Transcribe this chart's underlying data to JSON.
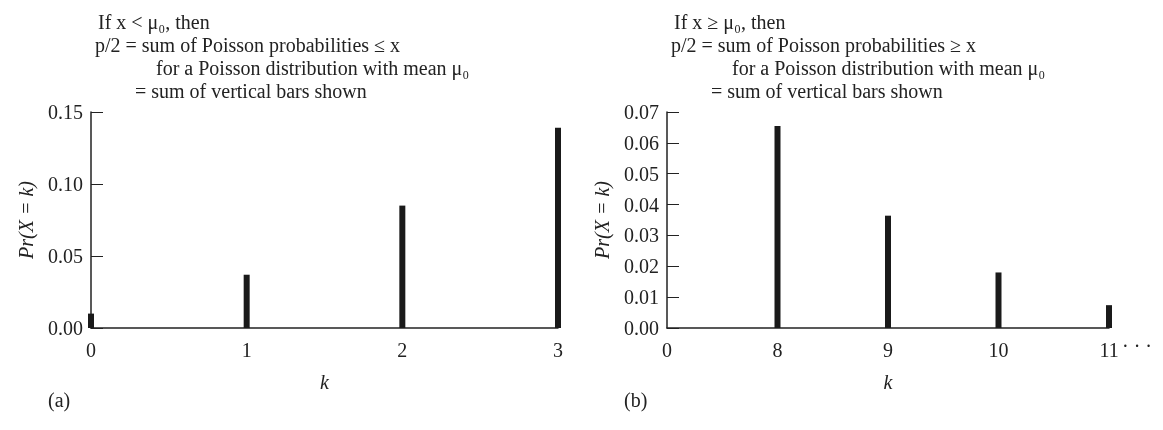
{
  "chart_data": [
    {
      "type": "bar",
      "xlabel": "k",
      "ylabel": "Pr(X = k)",
      "categories": [
        "0",
        "1",
        "2",
        "3"
      ],
      "values": [
        0.01,
        0.037,
        0.085,
        0.139
      ],
      "color": "#1a1a1a",
      "ylim": [
        0,
        0.15
      ],
      "yticks": [
        {
          "value": 0,
          "label": "0.00"
        },
        {
          "value": 0.05,
          "label": "0.05"
        },
        {
          "value": 0.1,
          "label": "0.10"
        },
        {
          "value": 0.15,
          "label": "0.15"
        }
      ],
      "grid": false,
      "annotations": [
        "If x < μ₀, then",
        "p/2 = sum of Poisson probabilities ≤ x",
        "for a Poisson distribution with mean μ₀",
        "= sum of vertical bars shown",
        "(a)"
      ]
    },
    {
      "type": "bar",
      "xlabel": "k",
      "ylabel": "Pr(X = k)",
      "categories": [
        "0",
        "8",
        "9",
        "10",
        "11"
      ],
      "values": [
        null,
        0.0655,
        0.0364,
        0.018,
        0.0074
      ],
      "color": "#1a1a1a",
      "ylim": [
        0,
        0.07
      ],
      "yticks": [
        {
          "value": 0,
          "label": "0.00"
        },
        {
          "value": 0.01,
          "label": "0.01"
        },
        {
          "value": 0.02,
          "label": "0.02"
        },
        {
          "value": 0.03,
          "label": "0.03"
        },
        {
          "value": 0.04,
          "label": "0.04"
        },
        {
          "value": 0.05,
          "label": "0.05"
        },
        {
          "value": 0.06,
          "label": "0.06"
        },
        {
          "value": 0.07,
          "label": "0.07"
        }
      ],
      "grid": false,
      "annotations": [
        "If x ≥ μ₀, then",
        "p/2 = sum of Poisson probabilities ≥ x",
        "for a Poisson distribution with mean μ₀",
        "= sum of vertical bars shown",
        "(b)",
        "· · ·"
      ]
    }
  ]
}
